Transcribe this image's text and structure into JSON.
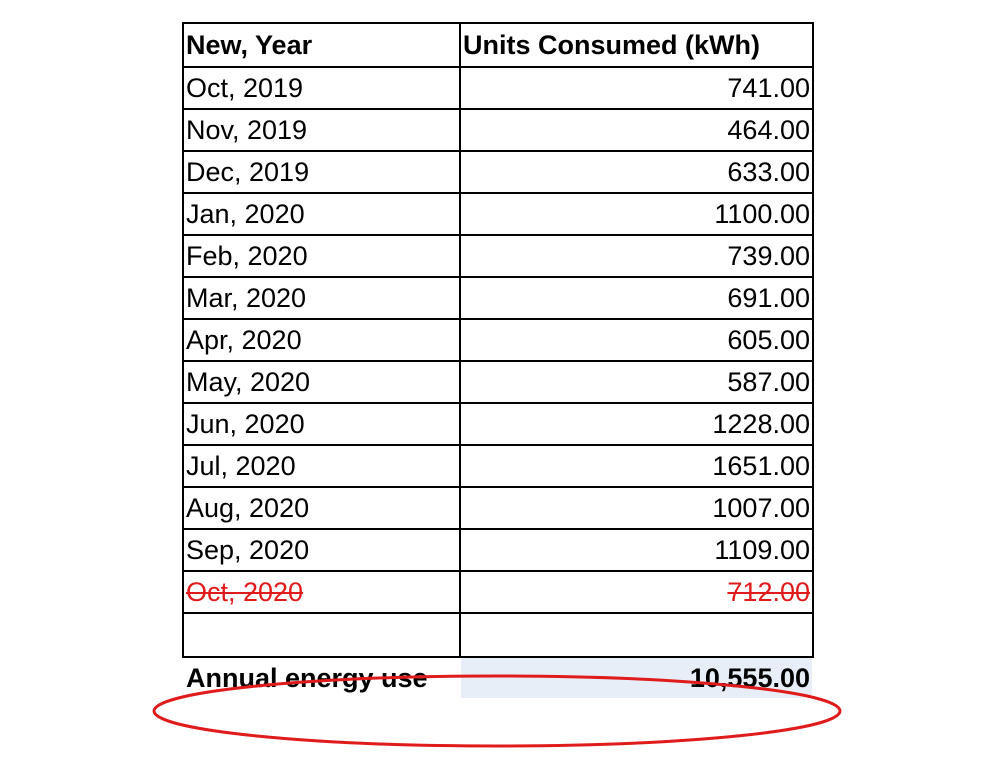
{
  "table": {
    "headers": [
      "New, Year",
      "Units Consumed (kWh)"
    ],
    "rows": [
      {
        "period": "Oct, 2019",
        "units": "741.00",
        "struck": false
      },
      {
        "period": "Nov, 2019",
        "units": "464.00",
        "struck": false
      },
      {
        "period": "Dec, 2019",
        "units": "633.00",
        "struck": false
      },
      {
        "period": "Jan, 2020",
        "units": "1100.00",
        "struck": false
      },
      {
        "period": "Feb, 2020",
        "units": "739.00",
        "struck": false
      },
      {
        "period": "Mar, 2020",
        "units": "691.00",
        "struck": false
      },
      {
        "period": "Apr, 2020",
        "units": "605.00",
        "struck": false
      },
      {
        "period": "May, 2020",
        "units": "587.00",
        "struck": false
      },
      {
        "period": "Jun, 2020",
        "units": "1228.00",
        "struck": false
      },
      {
        "period": "Jul, 2020",
        "units": "1651.00",
        "struck": false
      },
      {
        "period": "Aug, 2020",
        "units": "1007.00",
        "struck": false
      },
      {
        "period": "Sep, 2020",
        "units": "1109.00",
        "struck": false
      },
      {
        "period": "Oct, 2020",
        "units": "712.00",
        "struck": true
      }
    ],
    "total": {
      "label": "Annual energy use",
      "value": "10,555.00"
    }
  },
  "colors": {
    "strike": "#e01b1b",
    "highlight": "#e01b1b",
    "total_fill": "#e8eef8"
  }
}
